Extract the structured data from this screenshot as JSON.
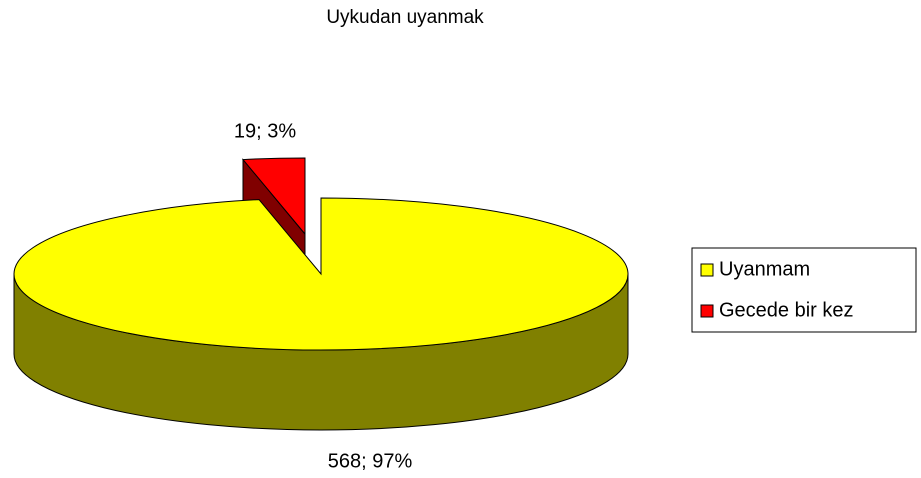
{
  "chart_data": {
    "type": "pie3d",
    "title": "Uykudan uyanmak",
    "categories": [
      "Uyanmam",
      "Gecede bir kez"
    ],
    "values": [
      568,
      19
    ],
    "value_labels": [
      "568; 97%",
      "19; 3%"
    ],
    "colors": [
      "#ffff00",
      "#ff0000"
    ],
    "side_colors": [
      "#808000",
      "#800000"
    ],
    "legend": "right"
  }
}
